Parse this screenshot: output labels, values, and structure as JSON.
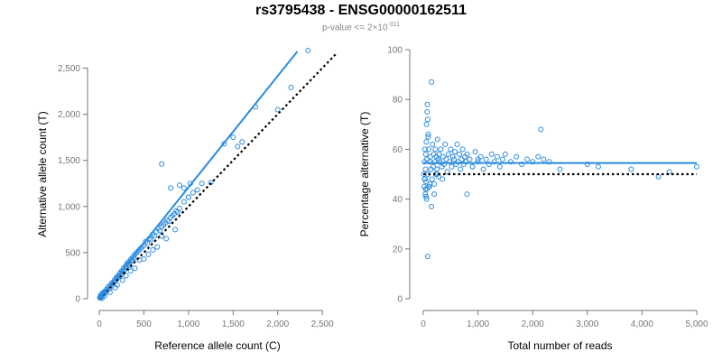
{
  "header": {
    "title": "rs3795438 - ENSG00000162511",
    "pvalue_prefix": "p-value <= 2×10",
    "pvalue_exp": "-311"
  },
  "colors": {
    "points": "#2b8be0",
    "fit": "#2b8be0",
    "reference": "#000000",
    "axis": "#777777"
  },
  "chart_data": [
    {
      "type": "scatter",
      "xlabel": "Reference allele count (C)",
      "ylabel": "Alternative allele count (T)",
      "xlim": [
        0,
        2650
      ],
      "ylim": [
        0,
        2700
      ],
      "xticks": [
        0,
        500,
        1000,
        1500,
        2000,
        2500
      ],
      "xtick_labels": [
        "0",
        "500",
        "1,000",
        "1,500",
        "2,000",
        "2,500"
      ],
      "yticks": [
        0,
        500,
        1000,
        1500,
        2000,
        2500
      ],
      "ytick_labels": [
        "0",
        "500",
        "1,000",
        "1,500",
        "2,000",
        "2,500"
      ],
      "fit_line": {
        "x": [
          0,
          2220
        ],
        "y": [
          0,
          2680
        ]
      },
      "reference_line": {
        "x": [
          0,
          2650
        ],
        "y": [
          0,
          2650
        ]
      },
      "points": {
        "x": [
          5,
          10,
          15,
          20,
          25,
          30,
          35,
          40,
          45,
          50,
          60,
          70,
          80,
          90,
          100,
          110,
          120,
          130,
          140,
          150,
          160,
          170,
          180,
          190,
          200,
          210,
          220,
          230,
          240,
          250,
          260,
          270,
          280,
          290,
          300,
          310,
          320,
          330,
          340,
          350,
          360,
          370,
          380,
          390,
          400,
          420,
          440,
          460,
          480,
          500,
          520,
          540,
          560,
          580,
          600,
          620,
          640,
          660,
          680,
          700,
          720,
          740,
          760,
          780,
          800,
          820,
          840,
          860,
          880,
          900,
          950,
          1000,
          1050,
          1100,
          1150,
          1250,
          1400,
          1500,
          1550,
          1600,
          1750,
          2000,
          2150,
          2340,
          700,
          800,
          900,
          1000,
          1020,
          950,
          700,
          30,
          60,
          120,
          180,
          260,
          350,
          450,
          550,
          650,
          750,
          850,
          200,
          300,
          400,
          500,
          600
        ],
        "y": [
          10,
          20,
          35,
          15,
          40,
          30,
          60,
          50,
          45,
          70,
          80,
          65,
          100,
          90,
          130,
          110,
          140,
          120,
          170,
          160,
          180,
          200,
          190,
          230,
          220,
          250,
          240,
          280,
          260,
          300,
          290,
          330,
          310,
          350,
          340,
          380,
          370,
          400,
          360,
          420,
          430,
          410,
          460,
          440,
          480,
          500,
          520,
          540,
          560,
          580,
          620,
          600,
          650,
          640,
          700,
          680,
          730,
          760,
          740,
          780,
          800,
          820,
          850,
          840,
          880,
          900,
          920,
          950,
          940,
          980,
          1050,
          1100,
          1150,
          1180,
          1250,
          1260,
          1680,
          1750,
          1650,
          1700,
          2080,
          2050,
          2290,
          2690,
          1460,
          1200,
          1230,
          1100,
          1250,
          1200,
          680,
          5,
          30,
          70,
          120,
          200,
          300,
          420,
          480,
          560,
          650,
          750,
          150,
          250,
          330,
          430,
          530
        ]
      }
    },
    {
      "type": "scatter",
      "xlabel": "Total number of reads",
      "ylabel": "Percentage alternative (T)",
      "xlim": [
        0,
        5000
      ],
      "ylim": [
        0,
        100
      ],
      "xticks": [
        0,
        1000,
        2000,
        3000,
        4000,
        5000
      ],
      "xtick_labels": [
        "0",
        "1,000",
        "2,000",
        "3,000",
        "4,000",
        "5,000"
      ],
      "yticks": [
        0,
        20,
        40,
        60,
        80,
        100
      ],
      "ytick_labels": [
        "0",
        "20",
        "40",
        "60",
        "80",
        "100"
      ],
      "fit_line": {
        "x": [
          0,
          5000
        ],
        "y": [
          54.5,
          54.5
        ]
      },
      "reference_line": {
        "x": [
          0,
          5000
        ],
        "y": [
          50,
          50
        ]
      },
      "points": {
        "x": [
          10,
          15,
          20,
          25,
          30,
          35,
          40,
          45,
          50,
          55,
          60,
          65,
          70,
          75,
          80,
          85,
          90,
          100,
          110,
          120,
          130,
          140,
          150,
          160,
          170,
          180,
          190,
          200,
          210,
          220,
          230,
          240,
          250,
          260,
          270,
          280,
          290,
          300,
          320,
          340,
          360,
          380,
          400,
          420,
          440,
          460,
          480,
          500,
          520,
          540,
          560,
          580,
          600,
          620,
          640,
          660,
          680,
          700,
          720,
          740,
          760,
          780,
          800,
          850,
          900,
          950,
          1000,
          1050,
          1100,
          1150,
          1200,
          1250,
          1300,
          1350,
          1400,
          1450,
          1500,
          1600,
          1700,
          1800,
          1900,
          2000,
          2100,
          2150,
          2200,
          2300,
          2500,
          3000,
          3200,
          3800,
          4300,
          4500,
          5000,
          80,
          90,
          60,
          70,
          150,
          200,
          120,
          40,
          30,
          50,
          100,
          250,
          300,
          350,
          800,
          900,
          1000
        ],
        "y": [
          50,
          45,
          55,
          48,
          60,
          42,
          52,
          58,
          47,
          63,
          40,
          56,
          75,
          78,
          17,
          50,
          65,
          60,
          45,
          55,
          57,
          52,
          87,
          48,
          62,
          53,
          58,
          46,
          55,
          60,
          50,
          57,
          52,
          64,
          56,
          49,
          58,
          55,
          60,
          53,
          57,
          54,
          62,
          56,
          51,
          58,
          55,
          60,
          53,
          57,
          56,
          59,
          54,
          62,
          55,
          58,
          52,
          56,
          60,
          54,
          57,
          55,
          58,
          56,
          53,
          59,
          55,
          57,
          52,
          56,
          54,
          58,
          55,
          57,
          53,
          56,
          58,
          55,
          57,
          54,
          56,
          55,
          57,
          68,
          56,
          55,
          52,
          54,
          53,
          52,
          49,
          51,
          53,
          72,
          66,
          70,
          44,
          37,
          42,
          46,
          44,
          48,
          41,
          45,
          50,
          55,
          48,
          42,
          53,
          56
        ]
      }
    }
  ]
}
